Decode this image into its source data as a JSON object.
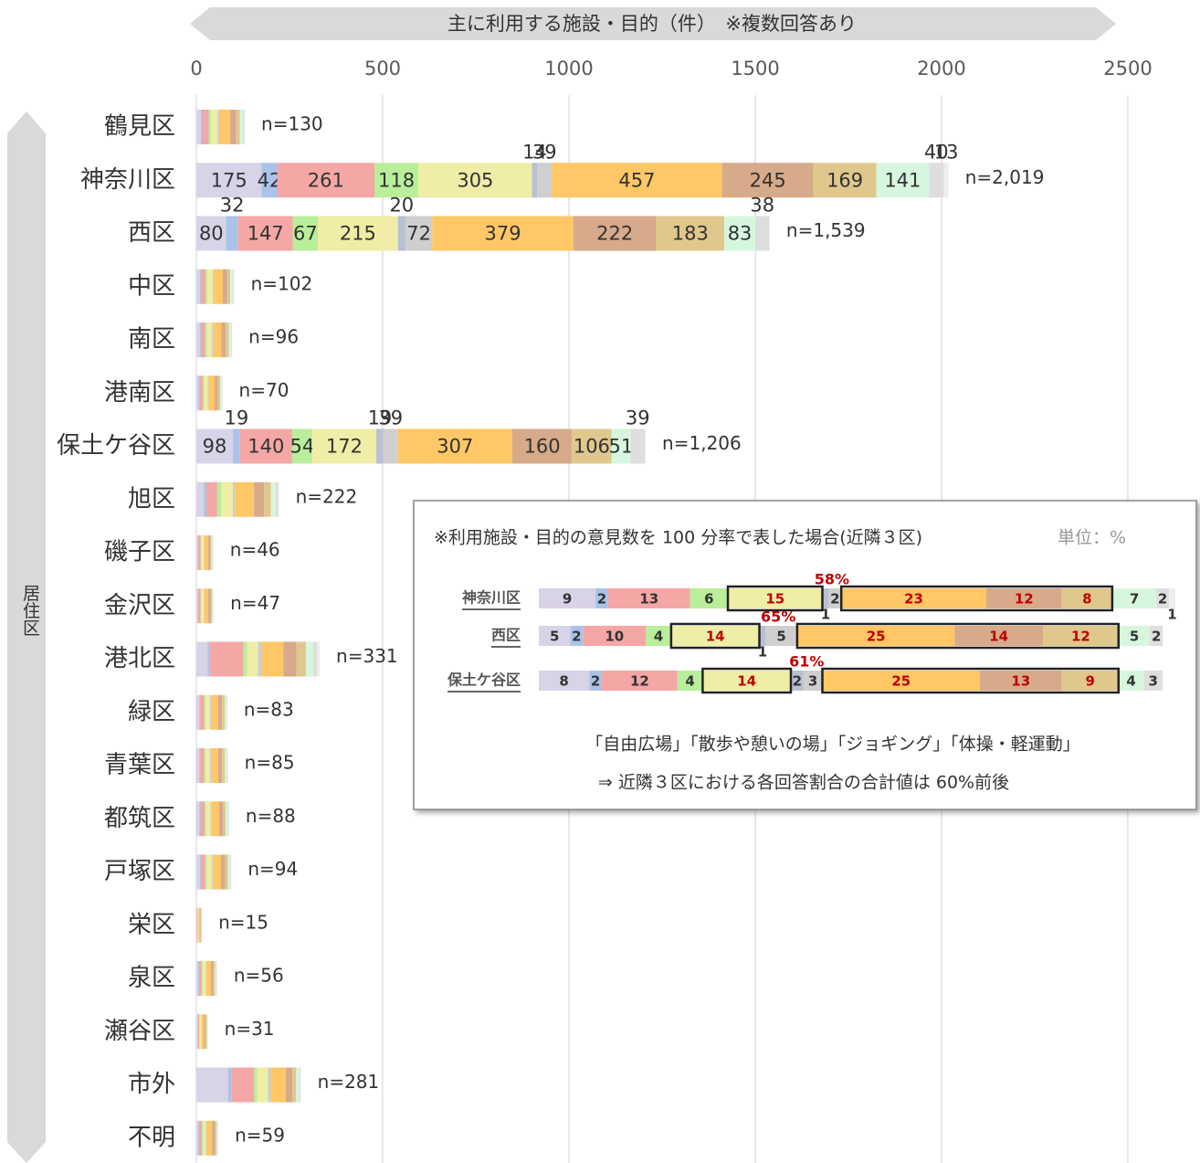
{
  "chart_data": [
    {
      "type": "bar",
      "orientation": "horizontal",
      "stacked": true,
      "title": "主に利用する施設・目的（件）　※複数回答あり",
      "y_axis_label": "居住区",
      "xlim": [
        0,
        2500
      ],
      "xticks": [
        0,
        500,
        1000,
        1500,
        2000,
        2500
      ],
      "grid": true,
      "categories": [
        "鶴見区",
        "神奈川区",
        "西区",
        "中区",
        "南区",
        "港南区",
        "保土ケ谷区",
        "旭区",
        "磯子区",
        "金沢区",
        "港北区",
        "緑区",
        "青葉区",
        "都筑区",
        "戸塚区",
        "栄区",
        "泉区",
        "瀬谷区",
        "市外",
        "不明"
      ],
      "total_labels": [
        "n=130",
        "n=2,019",
        "n=1,539",
        "n=102",
        "n=96",
        "n=70",
        "n=1,206",
        "n=222",
        "n=46",
        "n=47",
        "n=331",
        "n=83",
        "n=85",
        "n=88",
        "n=94",
        "n=15",
        "n=56",
        "n=31",
        "n=281",
        "n=59"
      ],
      "series": [
        {
          "color": "#d9d3e8",
          "values": [
            12,
            175,
            80,
            9,
            9,
            6,
            98,
            20,
            4,
            4,
            30,
            8,
            8,
            8,
            9,
            1,
            5,
            3,
            85,
            5
          ],
          "value_labels": [
            null,
            "175",
            "80",
            null,
            null,
            null,
            "98",
            null,
            null,
            null,
            null,
            null,
            null,
            null,
            null,
            null,
            null,
            null,
            null,
            null
          ]
        },
        {
          "color": "#a9c4e8",
          "values": [
            4,
            42,
            32,
            3,
            3,
            2,
            19,
            7,
            1,
            1,
            6,
            2,
            2,
            3,
            3,
            0,
            2,
            1,
            10,
            2
          ],
          "value_labels": [
            null,
            "42",
            "32",
            null,
            null,
            null,
            "19",
            null,
            null,
            null,
            null,
            null,
            null,
            null,
            null,
            null,
            null,
            null,
            null,
            null
          ]
        },
        {
          "color": "#f4a7a5",
          "values": [
            17,
            261,
            147,
            13,
            12,
            9,
            140,
            29,
            6,
            6,
            90,
            11,
            11,
            11,
            12,
            2,
            7,
            4,
            60,
            8
          ],
          "value_labels": [
            null,
            "261",
            "147",
            null,
            null,
            null,
            "140",
            null,
            null,
            null,
            null,
            null,
            null,
            null,
            null,
            null,
            null,
            null,
            null,
            null
          ]
        },
        {
          "color": "#b9ee9a",
          "values": [
            6,
            118,
            67,
            5,
            5,
            4,
            54,
            11,
            2,
            2,
            10,
            4,
            4,
            4,
            4,
            1,
            3,
            1,
            8,
            3
          ],
          "value_labels": [
            null,
            "118",
            "67",
            null,
            null,
            null,
            "54",
            null,
            null,
            null,
            null,
            null,
            null,
            null,
            null,
            null,
            null,
            null,
            null,
            null
          ]
        },
        {
          "color": "#efeda6",
          "values": [
            18,
            305,
            215,
            14,
            13,
            10,
            172,
            31,
            7,
            7,
            30,
            12,
            12,
            12,
            13,
            2,
            8,
            4,
            30,
            8
          ],
          "value_labels": [
            null,
            "305",
            "215",
            null,
            null,
            null,
            "172",
            null,
            null,
            null,
            null,
            null,
            null,
            null,
            null,
            null,
            null,
            null,
            null,
            null
          ]
        },
        {
          "color": "#b9c0d2",
          "values": [
            1,
            14,
            20,
            1,
            1,
            1,
            19,
            2,
            0,
            0,
            2,
            1,
            1,
            1,
            1,
            0,
            0,
            0,
            2,
            1
          ],
          "value_labels": [
            null,
            "14",
            "20",
            null,
            null,
            null,
            "19",
            null,
            null,
            null,
            null,
            null,
            null,
            null,
            null,
            null,
            null,
            null,
            null,
            null
          ]
        },
        {
          "color": "#cfcfcf",
          "values": [
            3,
            39,
            72,
            2,
            2,
            1,
            39,
            4,
            1,
            1,
            6,
            2,
            2,
            2,
            2,
            0,
            1,
            1,
            5,
            1
          ],
          "value_labels": [
            null,
            "39",
            "72",
            null,
            null,
            null,
            "39",
            null,
            null,
            null,
            null,
            null,
            null,
            null,
            null,
            null,
            null,
            null,
            null,
            null
          ]
        },
        {
          "color": "#ffc766",
          "values": [
            30,
            457,
            379,
            24,
            22,
            16,
            307,
            51,
            11,
            11,
            60,
            19,
            19,
            20,
            22,
            4,
            13,
            7,
            40,
            14
          ],
          "value_labels": [
            null,
            "457",
            "379",
            null,
            null,
            null,
            "307",
            null,
            null,
            null,
            null,
            null,
            null,
            null,
            null,
            null,
            null,
            null,
            null,
            null
          ]
        },
        {
          "color": "#d7aa8a",
          "values": [
            16,
            245,
            222,
            12,
            12,
            9,
            160,
            27,
            5,
            6,
            35,
            10,
            10,
            11,
            11,
            2,
            7,
            4,
            18,
            7
          ],
          "value_labels": [
            null,
            "245",
            "222",
            null,
            null,
            null,
            "160",
            null,
            null,
            null,
            null,
            null,
            null,
            null,
            null,
            null,
            null,
            null,
            null,
            null
          ]
        },
        {
          "color": "#e0c88d",
          "values": [
            10,
            169,
            183,
            8,
            8,
            6,
            106,
            18,
            4,
            4,
            25,
            7,
            7,
            7,
            8,
            1,
            4,
            3,
            10,
            5
          ],
          "value_labels": [
            null,
            "169",
            "183",
            null,
            null,
            null,
            "106",
            null,
            null,
            null,
            null,
            null,
            null,
            null,
            null,
            null,
            null,
            null,
            null,
            null
          ]
        },
        {
          "color": "#d6f7dd",
          "values": [
            8,
            141,
            83,
            6,
            5,
            4,
            51,
            13,
            3,
            3,
            20,
            4,
            5,
            5,
            5,
            1,
            3,
            2,
            7,
            3
          ],
          "value_labels": [
            null,
            "141",
            "83",
            null,
            null,
            null,
            "51",
            null,
            null,
            null,
            null,
            null,
            null,
            null,
            null,
            null,
            null,
            null,
            null,
            null
          ]
        },
        {
          "color": "#dedede",
          "values": [
            4,
            40,
            38,
            3,
            3,
            2,
            39,
            7,
            1,
            1,
            10,
            2,
            3,
            3,
            3,
            1,
            2,
            1,
            4,
            1
          ],
          "value_labels": [
            null,
            "40",
            "38",
            null,
            null,
            null,
            "39",
            null,
            null,
            null,
            null,
            null,
            null,
            null,
            null,
            null,
            null,
            null,
            null,
            null
          ]
        },
        {
          "color": "#eeeeee",
          "values": [
            1,
            13,
            1,
            2,
            1,
            0,
            2,
            2,
            1,
            1,
            7,
            1,
            1,
            1,
            1,
            0,
            1,
            0,
            2,
            1
          ],
          "value_labels": [
            null,
            "13",
            null,
            null,
            null,
            null,
            null,
            null,
            null,
            null,
            null,
            null,
            null,
            null,
            null,
            null,
            null,
            null,
            null,
            null
          ]
        }
      ]
    },
    {
      "type": "bar",
      "orientation": "horizontal",
      "stacked": true,
      "title": "※利用施設・目的の意見数を 100 分率で表した場合(近隣３区)",
      "unit": "単位：%",
      "xlim": [
        0,
        100
      ],
      "categories": [
        "神奈川区",
        "西区",
        "保土ケ谷区"
      ],
      "highlight_groups": [
        [
          4
        ],
        [
          7,
          8,
          9
        ]
      ],
      "highlight_labels": [
        "58%",
        "65%",
        "61%"
      ],
      "notes": [
        "「自由広場」「散歩や憩いの場」「ジョギング」「体操・軽運動」",
        "⇒ 近隣３区における各回答割合の合計値は 60%前後"
      ],
      "series": [
        {
          "color": "#d9d3e8",
          "values": [
            9,
            5,
            8
          ]
        },
        {
          "color": "#a9c4e8",
          "values": [
            2,
            2,
            2
          ]
        },
        {
          "color": "#f4a7a5",
          "values": [
            13,
            10,
            12
          ]
        },
        {
          "color": "#b9ee9a",
          "values": [
            6,
            4,
            4
          ]
        },
        {
          "color": "#efeda6",
          "values": [
            15,
            14,
            14
          ]
        },
        {
          "color": "#b9c0d2",
          "values": [
            1,
            1,
            2
          ]
        },
        {
          "color": "#cfcfcf",
          "values": [
            2,
            5,
            3
          ]
        },
        {
          "color": "#ffc766",
          "values": [
            23,
            25,
            25
          ]
        },
        {
          "color": "#d7aa8a",
          "values": [
            12,
            14,
            13
          ]
        },
        {
          "color": "#e0c88d",
          "values": [
            8,
            12,
            9
          ]
        },
        {
          "color": "#d6f7dd",
          "values": [
            7,
            5,
            4
          ]
        },
        {
          "color": "#dedede",
          "values": [
            2,
            2,
            3
          ]
        },
        {
          "color": "#eeeeee",
          "values": [
            1,
            0,
            0
          ]
        }
      ]
    }
  ]
}
